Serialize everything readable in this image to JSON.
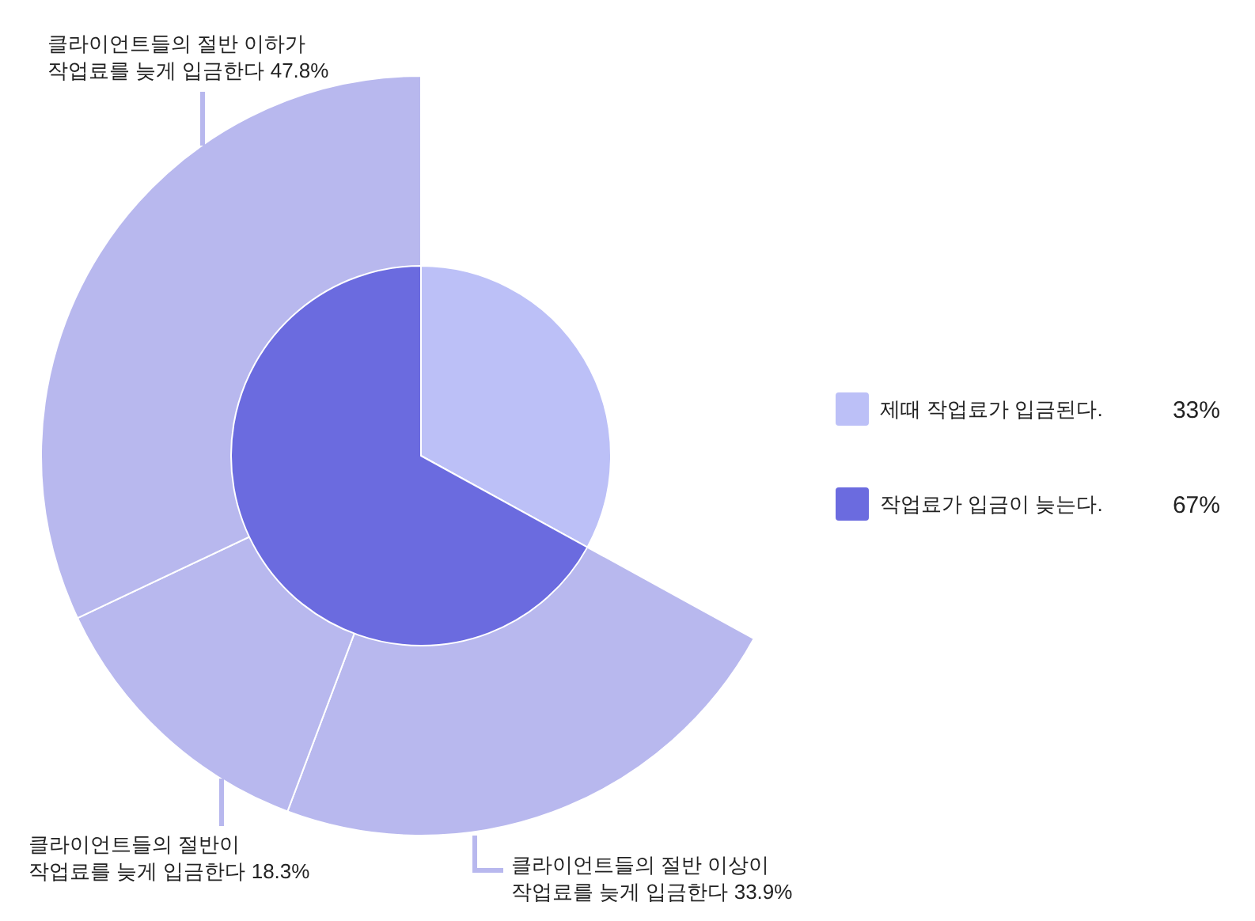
{
  "chart_data": [
    {
      "type": "pie",
      "categories": [
        "제때 작업료가 입금된다.",
        "작업료가 입금이 늦는다."
      ],
      "values": [
        33,
        67
      ],
      "colors": [
        "#bcc0f7",
        "#6b6bdf"
      ],
      "value_labels": [
        "33%",
        "67%"
      ],
      "legend": "right"
    },
    {
      "type": "pie",
      "categories": [
        "클라이언트들의 절반 이상이 작업료를 늦게 입금한다",
        "클라이언트들의 절반이 작업료를 늦게 입금한다",
        "클라이언트들의 절반 이하가 작업료를 늦게 입금한다"
      ],
      "values": [
        33.9,
        18.3,
        47.8
      ],
      "colors": [
        "#b8b8ee",
        "#b8b8ee",
        "#b8b8ee"
      ],
      "value_labels": [
        "33.9%",
        "18.3%",
        "47.8%"
      ]
    }
  ]
}
